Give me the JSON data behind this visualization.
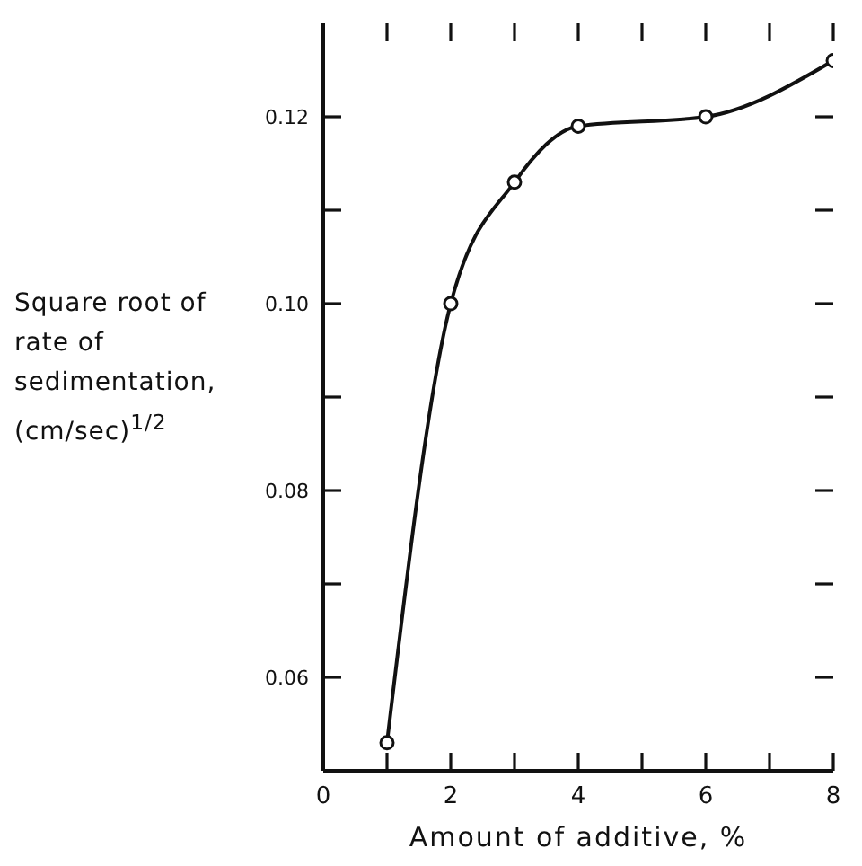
{
  "chart_data": {
    "type": "line",
    "xlabel": "Amount of additive, %",
    "ylabel": "Square root of rate of sedimentation, (cm/sec)$^{1/2}$",
    "x": [
      1,
      2,
      3,
      4,
      6,
      8
    ],
    "series": [
      {
        "color": "#111111",
        "values": [
          0.053,
          0.1,
          0.113,
          0.119,
          0.12,
          0.126
        ]
      }
    ],
    "xlim": [
      0,
      8
    ],
    "xticks": [
      0,
      {
        "value": 1,
        "label": null
      },
      2,
      {
        "value": 3,
        "label": null
      },
      4,
      {
        "value": 5,
        "label": null
      },
      6,
      {
        "value": 7,
        "label": null
      },
      8
    ],
    "ylim": [
      0.05,
      0.13
    ],
    "yticks": [
      {
        "value": 0.06,
        "label": "0.06"
      },
      {
        "value": 0.07,
        "label": null
      },
      {
        "value": 0.08,
        "label": "0.08"
      },
      {
        "value": 0.09,
        "label": null
      },
      {
        "value": 0.1,
        "label": "0.10"
      },
      {
        "value": 0.11,
        "label": null
      },
      {
        "value": 0.12,
        "label": "0.12"
      }
    ],
    "marker": "circle",
    "line_style": "solid",
    "grid": false,
    "legend": false
  }
}
